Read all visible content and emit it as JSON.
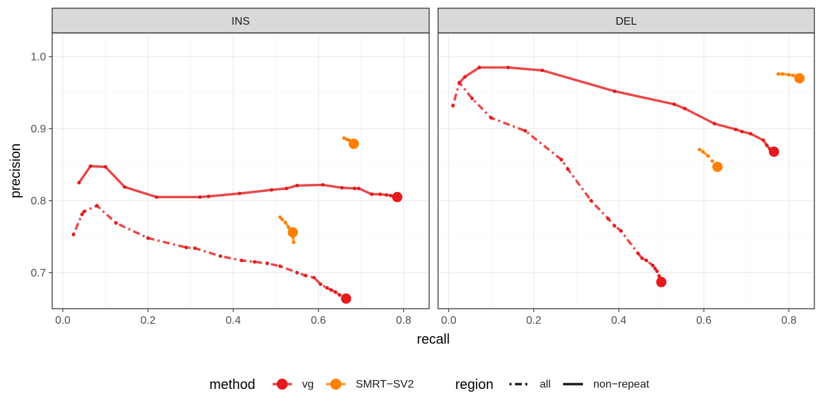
{
  "chart_data": {
    "type": "line",
    "xlabel": "recall",
    "ylabel": "precision",
    "xlim": [
      -0.025,
      0.86
    ],
    "ylim": [
      0.65,
      1.033
    ],
    "x_ticks": [
      0.0,
      0.2,
      0.4,
      0.6,
      0.8
    ],
    "x_tick_labels": [
      "0.0",
      "0.2",
      "0.4",
      "0.6",
      "0.8"
    ],
    "y_ticks": [
      0.7,
      0.8,
      0.9,
      1.0
    ],
    "y_tick_labels": [
      "0.7",
      "0.8",
      "0.9",
      "1.0"
    ],
    "grid": true,
    "legend_position": "bottom",
    "legend": {
      "method_title": "method",
      "method_items": [
        {
          "label": "vg",
          "color": "#E41A1C"
        },
        {
          "label": "SMRT−SV2",
          "color": "#FF7F00"
        }
      ],
      "region_title": "region",
      "region_items": [
        {
          "label": "all",
          "linetype": "dashed"
        },
        {
          "label": "non−repeat",
          "linetype": "solid"
        }
      ]
    },
    "panels": [
      {
        "title": "INS",
        "series": [
          {
            "method": "vg",
            "region": "non-repeat",
            "color": "#E41A1C",
            "x": [
              0.038,
              0.065,
              0.1,
              0.145,
              0.22,
              0.322,
              0.342,
              0.415,
              0.49,
              0.525,
              0.55,
              0.61,
              0.655,
              0.685,
              0.695,
              0.725,
              0.745,
              0.76,
              0.77,
              0.785
            ],
            "y": [
              0.825,
              0.848,
              0.847,
              0.819,
              0.805,
              0.805,
              0.806,
              0.81,
              0.815,
              0.817,
              0.821,
              0.822,
              0.818,
              0.817,
              0.817,
              0.809,
              0.809,
              0.808,
              0.807,
              0.805
            ]
          },
          {
            "method": "vg",
            "region": "all",
            "color": "#E41A1C",
            "x": [
              0.025,
              0.045,
              0.05,
              0.08,
              0.125,
              0.2,
              0.29,
              0.31,
              0.37,
              0.42,
              0.45,
              0.48,
              0.51,
              0.55,
              0.57,
              0.59,
              0.605,
              0.62,
              0.63,
              0.64,
              0.65,
              0.66,
              0.665
            ],
            "y": [
              0.753,
              0.781,
              0.785,
              0.793,
              0.769,
              0.748,
              0.735,
              0.734,
              0.723,
              0.717,
              0.715,
              0.713,
              0.709,
              0.7,
              0.696,
              0.693,
              0.684,
              0.679,
              0.676,
              0.673,
              0.669,
              0.666,
              0.664
            ]
          },
          {
            "method": "SMRT-SV2",
            "region": "non-repeat",
            "color": "#FF7F00",
            "x": [
              0.66,
              0.667,
              0.672,
              0.677,
              0.683
            ],
            "y": [
              0.887,
              0.885,
              0.884,
              0.882,
              0.879
            ]
          },
          {
            "method": "SMRT-SV2",
            "region": "all",
            "color": "#FF7F00",
            "x": [
              0.51,
              0.515,
              0.522,
              0.53,
              0.535,
              0.54,
              0.542,
              0.54
            ],
            "y": [
              0.777,
              0.774,
              0.77,
              0.763,
              0.756,
              0.75,
              0.742,
              0.756
            ]
          }
        ]
      },
      {
        "title": "DEL",
        "series": [
          {
            "method": "vg",
            "region": "non-repeat",
            "color": "#E41A1C",
            "x": [
              0.025,
              0.038,
              0.072,
              0.14,
              0.22,
              0.39,
              0.53,
              0.555,
              0.625,
              0.675,
              0.69,
              0.71,
              0.74,
              0.748,
              0.755,
              0.765
            ],
            "y": [
              0.964,
              0.972,
              0.985,
              0.985,
              0.981,
              0.952,
              0.934,
              0.928,
              0.907,
              0.899,
              0.896,
              0.893,
              0.884,
              0.877,
              0.872,
              0.868
            ]
          },
          {
            "method": "vg",
            "region": "all",
            "color": "#E41A1C",
            "x": [
              0.01,
              0.025,
              0.055,
              0.1,
              0.18,
              0.265,
              0.28,
              0.335,
              0.375,
              0.39,
              0.405,
              0.445,
              0.455,
              0.465,
              0.48,
              0.485,
              0.49,
              0.495,
              0.5
            ],
            "y": [
              0.932,
              0.964,
              0.942,
              0.915,
              0.897,
              0.857,
              0.844,
              0.8,
              0.775,
              0.765,
              0.758,
              0.727,
              0.72,
              0.717,
              0.71,
              0.706,
              0.702,
              0.695,
              0.687
            ]
          },
          {
            "method": "SMRT-SV2",
            "region": "non-repeat",
            "color": "#FF7F00",
            "x": [
              0.775,
              0.785,
              0.8,
              0.81,
              0.825
            ],
            "y": [
              0.976,
              0.976,
              0.975,
              0.974,
              0.97
            ]
          },
          {
            "method": "SMRT-SV2",
            "region": "all",
            "color": "#FF7F00",
            "x": [
              0.59,
              0.598,
              0.61,
              0.62,
              0.627,
              0.632
            ],
            "y": [
              0.871,
              0.868,
              0.862,
              0.855,
              0.85,
              0.847
            ]
          }
        ]
      }
    ]
  }
}
